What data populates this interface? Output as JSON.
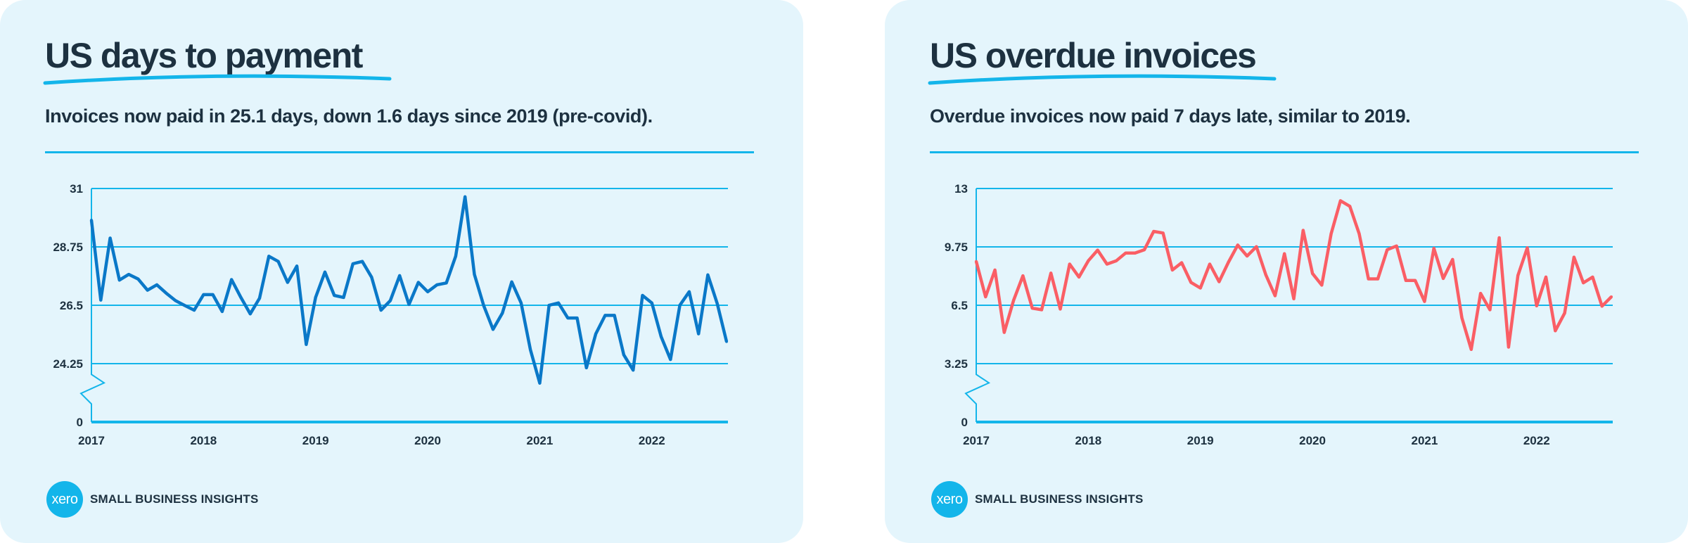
{
  "colors": {
    "background": "#e4f5fc",
    "accent": "#13b5ea",
    "text": "#1d3140",
    "left_line": "#0a78c8",
    "right_line": "#fa5e65"
  },
  "brand": {
    "logo_text": "xero",
    "label": "SMALL BUSINESS INSIGHTS"
  },
  "left": {
    "title": "US days to payment",
    "subtitle": "Invoices now paid in 25.1 days, down 1.6 days since 2019 (pre-covid)."
  },
  "right": {
    "title": "US overdue invoices",
    "subtitle": "Overdue invoices now paid 7 days late, similar to 2019."
  },
  "chart_data": [
    {
      "type": "line",
      "title": "",
      "xlabel": "",
      "ylabel": "",
      "x_start": "2017-01",
      "frequency": "monthly",
      "x_tick_labels": [
        "2017",
        "2018",
        "2019",
        "2020",
        "2021",
        "2022"
      ],
      "y_tick_labels": [
        "0",
        "24.25",
        "26.5",
        "28.75",
        "31"
      ],
      "y_ticks": [
        0,
        24.25,
        26.5,
        28.75,
        31
      ],
      "axis_break": true,
      "grid": true,
      "color": "#0a78c8",
      "values": [
        29.78,
        26.7,
        29.09,
        27.47,
        27.69,
        27.51,
        27.08,
        27.29,
        26.97,
        26.68,
        26.49,
        26.31,
        26.91,
        26.91,
        26.26,
        27.49,
        26.8,
        26.17,
        26.77,
        28.39,
        28.19,
        27.38,
        28.01,
        24.99,
        26.8,
        27.78,
        26.88,
        26.8,
        28.1,
        28.19,
        27.58,
        26.31,
        26.68,
        27.64,
        26.53,
        27.38,
        27.02,
        27.29,
        27.36,
        28.39,
        30.68,
        27.69,
        26.49,
        25.57,
        26.2,
        27.4,
        26.59,
        24.79,
        23.5,
        26.5,
        26.59,
        26.01,
        26.01,
        24.09,
        25.4,
        26.11,
        26.11,
        24.59,
        24.0,
        26.88,
        26.59,
        25.29,
        24.41,
        26.5,
        27.02,
        25.4,
        27.67,
        26.57,
        25.1
      ]
    },
    {
      "type": "line",
      "title": "",
      "xlabel": "",
      "ylabel": "",
      "x_start": "2017-01",
      "frequency": "monthly",
      "x_tick_labels": [
        "2017",
        "2018",
        "2019",
        "2020",
        "2021",
        "2022"
      ],
      "y_tick_labels": [
        "0",
        "3.25",
        "6.5",
        "9.75",
        "13"
      ],
      "y_ticks": [
        0,
        3.25,
        6.5,
        9.75,
        13
      ],
      "axis_break": true,
      "grid": true,
      "color": "#fa5e65",
      "values": [
        8.94,
        6.97,
        8.46,
        4.99,
        6.77,
        8.14,
        6.34,
        6.25,
        8.29,
        6.29,
        8.79,
        8.07,
        8.98,
        9.57,
        8.79,
        8.98,
        9.41,
        9.41,
        9.59,
        10.61,
        10.52,
        8.46,
        8.87,
        7.77,
        7.46,
        8.79,
        7.81,
        8.89,
        9.85,
        9.24,
        9.76,
        8.2,
        7.03,
        9.37,
        6.86,
        10.67,
        8.27,
        7.62,
        10.48,
        12.32,
        12.01,
        10.48,
        7.97,
        7.97,
        9.59,
        9.8,
        7.88,
        7.88,
        6.71,
        9.67,
        7.99,
        9.05,
        5.8,
        4.04,
        7.16,
        6.25,
        10.26,
        4.17,
        8.16,
        9.7,
        6.47,
        8.07,
        5.08,
        6.06,
        9.18,
        7.75,
        8.07,
        6.45,
        6.97
      ]
    }
  ]
}
